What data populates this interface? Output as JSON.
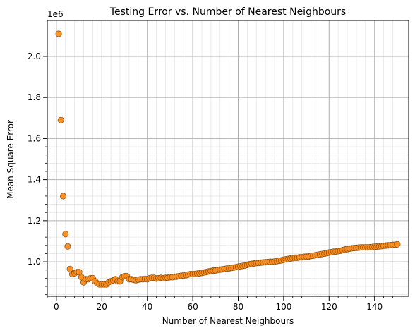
{
  "chart_data": {
    "type": "scatter",
    "title": "Testing Error vs. Number of Nearest Neighbours",
    "xlabel": "Number of Nearest Neighbours",
    "ylabel": "Mean Square Error",
    "y_offset_label": "1e6",
    "y_scale_factor": 1000000,
    "xlim": [
      -4,
      155
    ],
    "ylim": [
      0.832,
      2.175
    ],
    "x_major_ticks": [
      0,
      20,
      40,
      60,
      80,
      100,
      120,
      140
    ],
    "y_major_ticks": [
      1.0,
      1.2,
      1.4,
      1.6,
      1.8,
      2.0
    ],
    "x_tick_labels": [
      "0",
      "20",
      "40",
      "60",
      "80",
      "100",
      "120",
      "140"
    ],
    "y_tick_labels": [
      "1.0",
      "1.2",
      "1.4",
      "1.6",
      "1.8",
      "2.0"
    ],
    "grid": "major and minor",
    "marker_color": "#ff8c1a",
    "marker_edge_color": "#7a4a12",
    "major_grid_color": "#b0b0b0",
    "minor_grid_color": "#e6e6e6",
    "x": [
      1,
      2,
      3,
      4,
      5,
      6,
      7,
      8,
      9,
      10,
      11,
      12,
      13,
      14,
      15,
      16,
      17,
      18,
      19,
      20,
      21,
      22,
      23,
      24,
      25,
      26,
      27,
      28,
      29,
      30,
      31,
      32,
      33,
      34,
      35,
      36,
      37,
      38,
      39,
      40,
      41,
      42,
      43,
      44,
      45,
      46,
      47,
      48,
      49,
      50,
      51,
      52,
      53,
      54,
      55,
      56,
      57,
      58,
      59,
      60,
      61,
      62,
      63,
      64,
      65,
      66,
      67,
      68,
      69,
      70,
      71,
      72,
      73,
      74,
      75,
      76,
      77,
      78,
      79,
      80,
      81,
      82,
      83,
      84,
      85,
      86,
      87,
      88,
      89,
      90,
      91,
      92,
      93,
      94,
      95,
      96,
      97,
      98,
      99,
      100,
      101,
      102,
      103,
      104,
      105,
      106,
      107,
      108,
      109,
      110,
      111,
      112,
      113,
      114,
      115,
      116,
      117,
      118,
      119,
      120,
      121,
      122,
      123,
      124,
      125,
      126,
      127,
      128,
      129,
      130,
      131,
      132,
      133,
      134,
      135,
      136,
      137,
      138,
      139,
      140,
      141,
      142,
      143,
      144,
      145,
      146,
      147,
      148,
      149,
      150
    ],
    "y": [
      2.11,
      1.69,
      1.32,
      1.135,
      1.075,
      0.965,
      0.94,
      0.945,
      0.95,
      0.95,
      0.925,
      0.9,
      0.915,
      0.915,
      0.92,
      0.92,
      0.905,
      0.895,
      0.89,
      0.89,
      0.89,
      0.89,
      0.9,
      0.905,
      0.91,
      0.915,
      0.905,
      0.905,
      0.925,
      0.93,
      0.93,
      0.915,
      0.915,
      0.912,
      0.91,
      0.913,
      0.915,
      0.915,
      0.917,
      0.915,
      0.92,
      0.922,
      0.922,
      0.918,
      0.92,
      0.922,
      0.92,
      0.922,
      0.922,
      0.925,
      0.925,
      0.927,
      0.928,
      0.93,
      0.932,
      0.933,
      0.935,
      0.938,
      0.94,
      0.94,
      0.941,
      0.942,
      0.944,
      0.946,
      0.948,
      0.95,
      0.953,
      0.955,
      0.957,
      0.958,
      0.96,
      0.962,
      0.963,
      0.965,
      0.967,
      0.968,
      0.97,
      0.972,
      0.974,
      0.976,
      0.978,
      0.98,
      0.982,
      0.985,
      0.988,
      0.99,
      0.992,
      0.994,
      0.995,
      0.996,
      0.997,
      0.998,
      0.999,
      1.0,
      1.0,
      1.001,
      1.003,
      1.005,
      1.007,
      1.01,
      1.012,
      1.014,
      1.016,
      1.018,
      1.02,
      1.02,
      1.022,
      1.022,
      1.024,
      1.025,
      1.026,
      1.028,
      1.03,
      1.032,
      1.034,
      1.036,
      1.038,
      1.04,
      1.042,
      1.045,
      1.047,
      1.049,
      1.05,
      1.052,
      1.054,
      1.057,
      1.06,
      1.062,
      1.064,
      1.066,
      1.067,
      1.068,
      1.069,
      1.07,
      1.07,
      1.07,
      1.07,
      1.071,
      1.072,
      1.073,
      1.074,
      1.075,
      1.076,
      1.078,
      1.079,
      1.08,
      1.081,
      1.082,
      1.083,
      1.085
    ]
  }
}
